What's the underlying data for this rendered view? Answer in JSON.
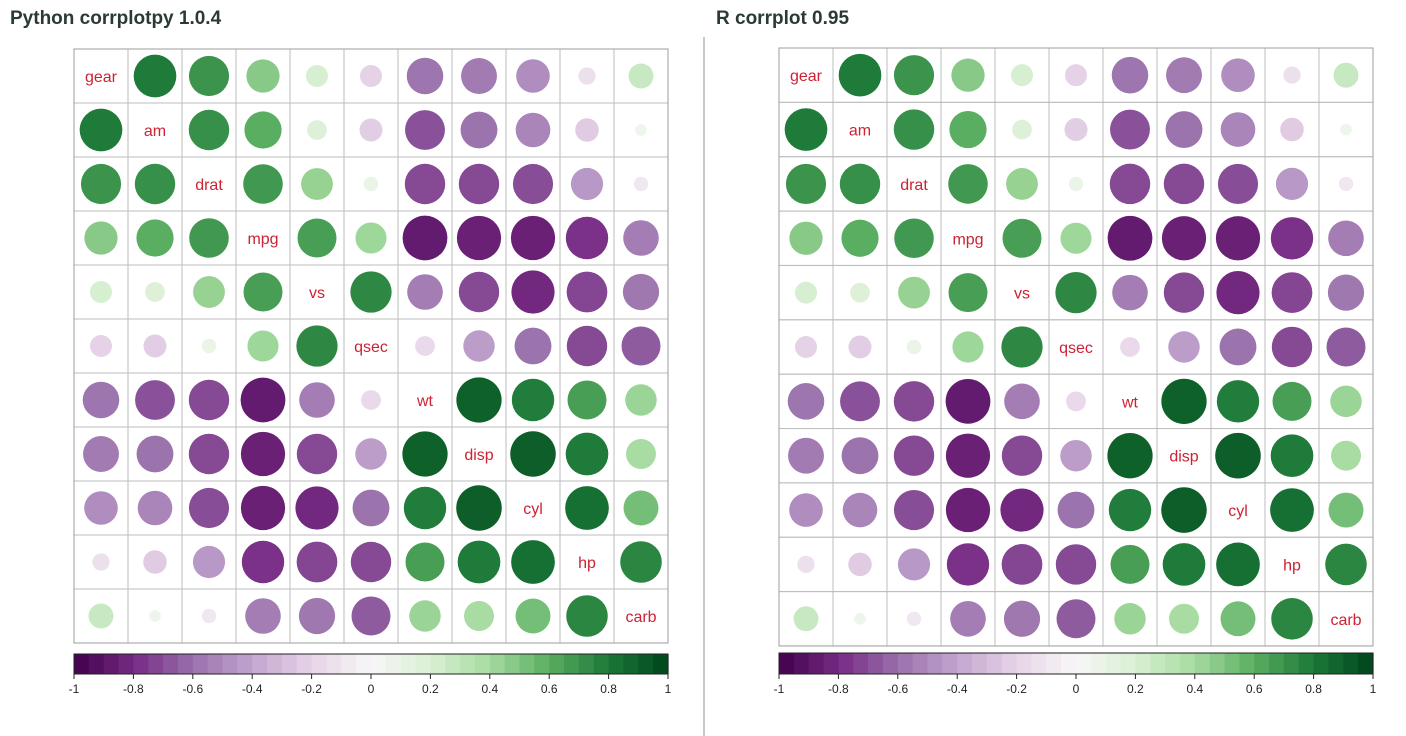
{
  "panels": [
    {
      "title": "Python corrplotpy 1.0.4"
    },
    {
      "title": "R corrplot 0.95"
    }
  ],
  "chart_data": {
    "type": "heatmap",
    "variables": [
      "gear",
      "am",
      "drat",
      "mpg",
      "vs",
      "qsec",
      "wt",
      "disp",
      "cyl",
      "hp",
      "carb"
    ],
    "matrix": [
      [
        1.0,
        0.79,
        0.7,
        0.48,
        0.21,
        -0.21,
        -0.58,
        -0.56,
        -0.49,
        -0.13,
        0.27
      ],
      [
        0.79,
        1.0,
        0.71,
        0.6,
        0.17,
        -0.23,
        -0.69,
        -0.59,
        -0.52,
        -0.24,
        0.06
      ],
      [
        0.7,
        0.71,
        1.0,
        0.68,
        0.44,
        0.09,
        -0.71,
        -0.71,
        -0.7,
        -0.45,
        -0.09
      ],
      [
        0.48,
        0.6,
        0.68,
        1.0,
        0.66,
        0.42,
        -0.87,
        -0.85,
        -0.85,
        -0.78,
        -0.55
      ],
      [
        0.21,
        0.17,
        0.44,
        0.66,
        1.0,
        0.74,
        -0.55,
        -0.71,
        -0.81,
        -0.72,
        -0.57
      ],
      [
        -0.21,
        -0.23,
        0.09,
        0.42,
        0.74,
        1.0,
        -0.17,
        -0.43,
        -0.59,
        -0.71,
        -0.66
      ],
      [
        -0.58,
        -0.69,
        -0.71,
        -0.87,
        -0.55,
        -0.17,
        1.0,
        0.89,
        0.78,
        0.66,
        0.43
      ],
      [
        -0.56,
        -0.59,
        -0.71,
        -0.85,
        -0.71,
        -0.43,
        0.89,
        1.0,
        0.9,
        0.79,
        0.39
      ],
      [
        -0.49,
        -0.52,
        -0.7,
        -0.85,
        -0.81,
        -0.59,
        0.78,
        0.9,
        1.0,
        0.83,
        0.53
      ],
      [
        -0.13,
        -0.24,
        -0.45,
        -0.78,
        -0.72,
        -0.71,
        0.66,
        0.79,
        0.83,
        1.0,
        0.75
      ],
      [
        0.27,
        0.06,
        -0.09,
        -0.55,
        -0.57,
        -0.66,
        0.43,
        0.39,
        0.53,
        0.75,
        1.0
      ]
    ],
    "colorbar": {
      "range": [
        -1,
        1
      ],
      "tick_values": [
        -1,
        -0.8,
        -0.6,
        -0.4,
        -0.2,
        0,
        0.2,
        0.4,
        0.6,
        0.8,
        1
      ],
      "tick_labels": [
        "-1",
        "-0.8",
        "-0.6",
        "-0.4",
        "-0.2",
        "0",
        "0.2",
        "0.4",
        "0.6",
        "0.8",
        "1"
      ],
      "colors": [
        "#40004b",
        "#762a83",
        "#9970ab",
        "#c2a5cf",
        "#e7d4e8",
        "#f7f7f7",
        "#d9f0d3",
        "#a6dba0",
        "#5aae61",
        "#1b7837",
        "#00441b"
      ]
    },
    "label_color": "#cc2233"
  }
}
